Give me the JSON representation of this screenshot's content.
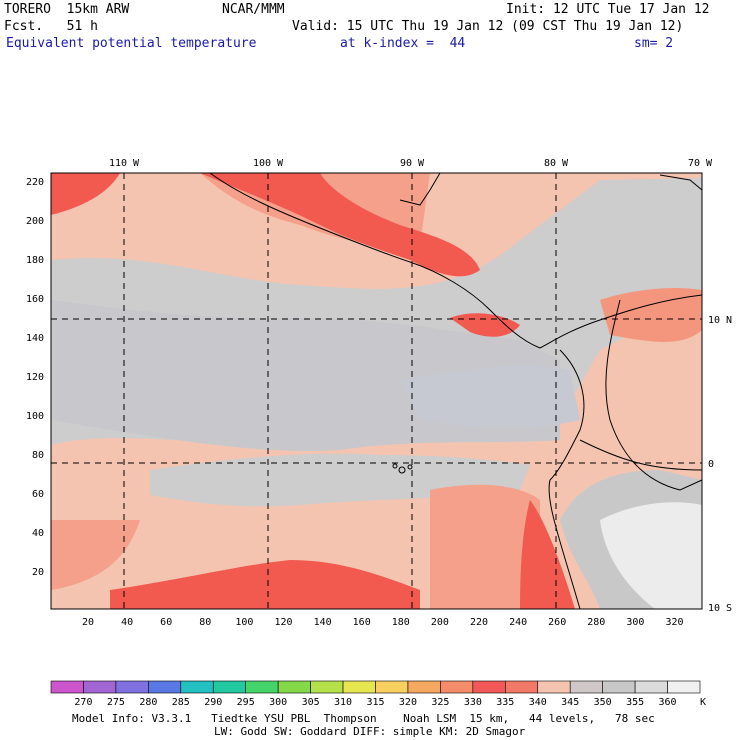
{
  "header": {
    "model": "TORERO  15km ARW",
    "center": "NCAR/MMM",
    "init": "Init: 12 UTC Tue 17 Jan 12",
    "fcst": "Fcst.   51 h",
    "valid": "Valid: 15 UTC Thu 19 Jan 12 (09 CST Thu 19 Jan 12)",
    "field": "Equivalent potential temperature",
    "level": "at k-index =  44",
    "smooth": "sm= 2"
  },
  "axes": {
    "lon_labels": [
      "110 W",
      "100 W",
      "90 W",
      "80 W",
      "70 W"
    ],
    "lat_labels": [
      "10 N",
      "0",
      "10 S"
    ],
    "y_ticks": [
      "220",
      "200",
      "180",
      "160",
      "140",
      "120",
      "100",
      "80",
      "60",
      "40",
      "20"
    ],
    "x_ticks": [
      "20",
      "40",
      "60",
      "80",
      "100",
      "120",
      "140",
      "160",
      "180",
      "200",
      "220",
      "240",
      "260",
      "280",
      "300",
      "320"
    ]
  },
  "colorbar": {
    "unit": "K",
    "labels": [
      "270",
      "275",
      "280",
      "285",
      "290",
      "295",
      "300",
      "305",
      "310",
      "315",
      "320",
      "325",
      "330",
      "335",
      "340",
      "345",
      "350",
      "355",
      "360"
    ],
    "colors": [
      "#cc55cc",
      "#a266d4",
      "#7f72e0",
      "#5a78e4",
      "#22c0c0",
      "#22c8a0",
      "#44d46a",
      "#84d84a",
      "#b4e04a",
      "#e6e650",
      "#f8d060",
      "#f4a860",
      "#f48c6a",
      "#f25858",
      "#f27868",
      "#f4c4b0",
      "#d0c8c8",
      "#c8c8c8",
      "#dcdcdc",
      "#f0f0f0"
    ]
  },
  "map_colors": {
    "base": "#f4c4b0",
    "gray": "#c8c8c8",
    "lightgray": "#cdcfd6",
    "salmon": "#f4967e",
    "red": "#f25a50",
    "white": "#ececec",
    "frame": "#000000"
  },
  "footer": {
    "line1": "Model Info: V3.3.1   Tiedtke YSU PBL  Thompson    Noah LSM  15 km,   44 levels,   78 sec",
    "line2": "LW: Godd SW: Goddard DIFF: simple KM: 2D Smagor"
  }
}
